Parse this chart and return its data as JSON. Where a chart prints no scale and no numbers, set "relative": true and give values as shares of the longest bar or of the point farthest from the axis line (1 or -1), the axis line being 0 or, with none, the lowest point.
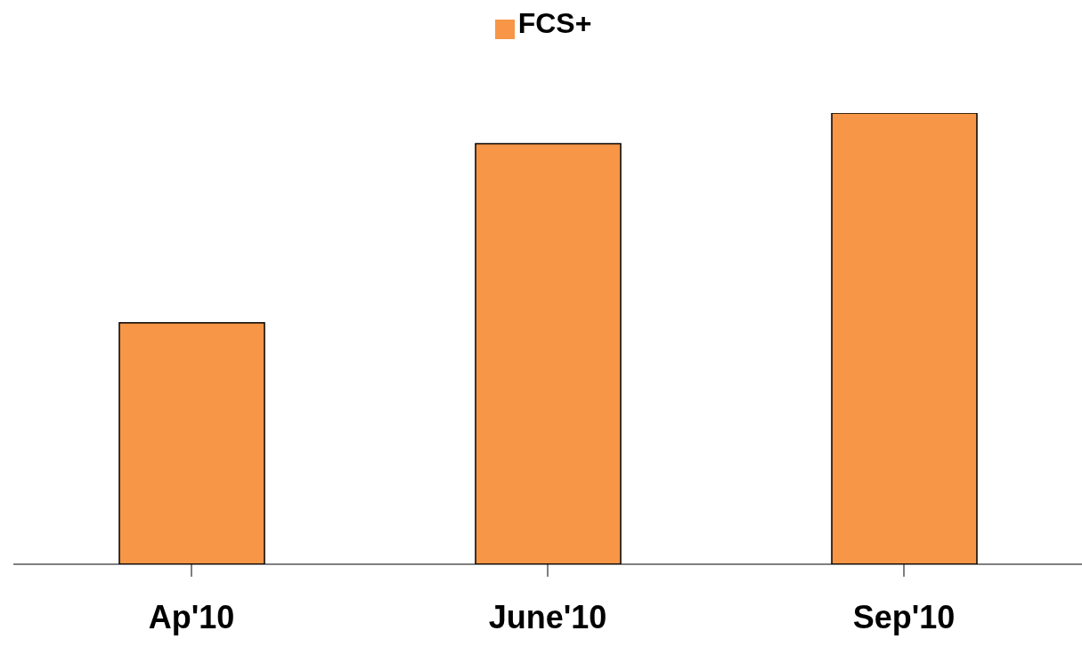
{
  "chart_data": {
    "type": "bar",
    "relative": true,
    "categories": [
      "Ap'10",
      "June'10",
      "Sep'10"
    ],
    "series": [
      {
        "name": "FCS+",
        "color": "#f79646",
        "values": [
          0.535,
          0.932,
          1
        ]
      }
    ],
    "legend": "top",
    "grid": false
  }
}
